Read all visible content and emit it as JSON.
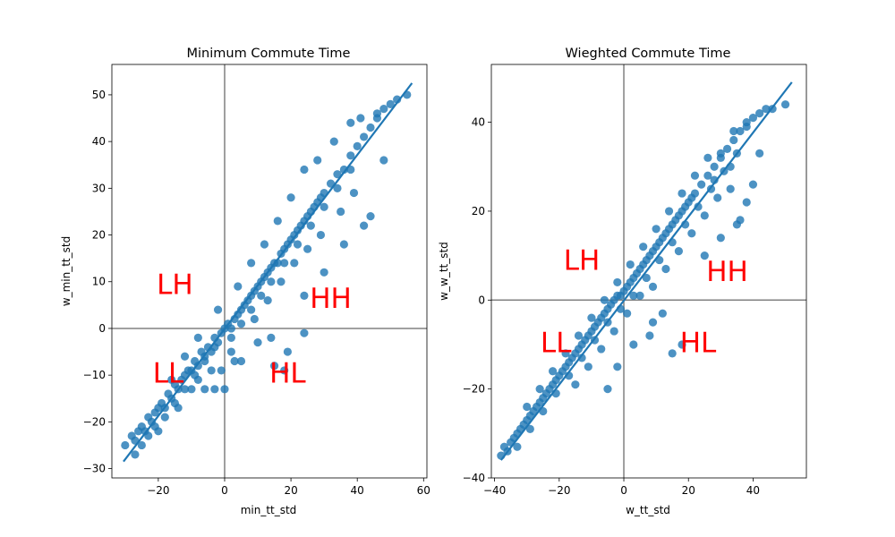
{
  "chart_data": [
    {
      "type": "scatter",
      "title": "Minimum Commute Time",
      "xlabel": "min_tt_std",
      "ylabel": "w_min_tt_std",
      "xlim": [
        -34,
        61
      ],
      "ylim": [
        -32,
        56.5
      ],
      "xticks": [
        -20,
        0,
        20,
        40,
        60
      ],
      "yticks": [
        -30,
        -20,
        -10,
        0,
        10,
        20,
        30,
        40,
        50
      ],
      "xtick_labels": [
        "−20",
        "0",
        "20",
        "40",
        "60"
      ],
      "ytick_labels": [
        "−30",
        "−20",
        "−10",
        "0",
        "10",
        "20",
        "30",
        "40",
        "50"
      ],
      "grid": false,
      "series_color": "#1f77b4",
      "reference_line_color": "#808080",
      "regression": {
        "x": [
          -30.5,
          56.5
        ],
        "y": [
          -28.5,
          52.5
        ]
      },
      "points": [
        [
          -30,
          -25
        ],
        [
          -28,
          -23
        ],
        [
          -27,
          -24
        ],
        [
          -26,
          -22
        ],
        [
          -25,
          -21
        ],
        [
          -24,
          -22
        ],
        [
          -23,
          -19
        ],
        [
          -22,
          -20
        ],
        [
          -21,
          -18
        ],
        [
          -20,
          -17
        ],
        [
          -19,
          -16
        ],
        [
          -18,
          -17
        ],
        [
          -17,
          -14
        ],
        [
          -16,
          -15
        ],
        [
          -15,
          -12
        ],
        [
          -14,
          -13
        ],
        [
          -13,
          -11
        ],
        [
          -12,
          -10
        ],
        [
          -11,
          -9
        ],
        [
          -10,
          -9
        ],
        [
          -9,
          -7
        ],
        [
          -8,
          -8
        ],
        [
          -7,
          -5
        ],
        [
          -6,
          -6
        ],
        [
          -5,
          -4
        ],
        [
          -4,
          -5
        ],
        [
          -3,
          -2
        ],
        [
          -2,
          -3
        ],
        [
          -1,
          -1
        ],
        [
          0,
          0
        ],
        [
          1,
          1
        ],
        [
          2,
          0
        ],
        [
          3,
          2
        ],
        [
          4,
          3
        ],
        [
          5,
          4
        ],
        [
          6,
          5
        ],
        [
          7,
          6
        ],
        [
          8,
          7
        ],
        [
          9,
          8
        ],
        [
          10,
          9
        ],
        [
          11,
          10
        ],
        [
          12,
          11
        ],
        [
          13,
          12
        ],
        [
          14,
          13
        ],
        [
          15,
          14
        ],
        [
          16,
          14
        ],
        [
          17,
          16
        ],
        [
          18,
          17
        ],
        [
          19,
          18
        ],
        [
          20,
          19
        ],
        [
          21,
          20
        ],
        [
          22,
          21
        ],
        [
          23,
          22
        ],
        [
          24,
          23
        ],
        [
          25,
          24
        ],
        [
          26,
          25
        ],
        [
          27,
          26
        ],
        [
          28,
          27
        ],
        [
          29,
          28
        ],
        [
          30,
          29
        ],
        [
          32,
          31
        ],
        [
          34,
          33
        ],
        [
          36,
          34
        ],
        [
          38,
          37
        ],
        [
          40,
          39
        ],
        [
          42,
          41
        ],
        [
          44,
          43
        ],
        [
          46,
          45
        ],
        [
          48,
          47
        ],
        [
          50,
          48
        ],
        [
          52,
          49
        ],
        [
          55,
          50
        ],
        [
          -27,
          -27
        ],
        [
          -25,
          -25
        ],
        [
          -23,
          -23
        ],
        [
          -21,
          -21
        ],
        [
          -18,
          -19
        ],
        [
          -15,
          -16
        ],
        [
          -12,
          -13
        ],
        [
          -9,
          -10
        ],
        [
          -6,
          -7
        ],
        [
          -3,
          -4
        ],
        [
          2,
          -2
        ],
        [
          5,
          1
        ],
        [
          8,
          4
        ],
        [
          11,
          7
        ],
        [
          14,
          10
        ],
        [
          18,
          14
        ],
        [
          22,
          18
        ],
        [
          26,
          22
        ],
        [
          30,
          26
        ],
        [
          34,
          30
        ],
        [
          38,
          34
        ],
        [
          -20,
          -22
        ],
        [
          -14,
          -17
        ],
        [
          -8,
          -11
        ],
        [
          -4,
          -9
        ],
        [
          -1,
          -9
        ],
        [
          3,
          -7
        ],
        [
          0,
          -13
        ],
        [
          5,
          -7
        ],
        [
          10,
          -3
        ],
        [
          14,
          -2
        ],
        [
          18,
          -9
        ],
        [
          24,
          7
        ],
        [
          30,
          12
        ],
        [
          36,
          18
        ],
        [
          42,
          22
        ],
        [
          44,
          24
        ],
        [
          48,
          36
        ],
        [
          -16,
          -11
        ],
        [
          -12,
          -6
        ],
        [
          -8,
          -2
        ],
        [
          -2,
          4
        ],
        [
          4,
          9
        ],
        [
          8,
          14
        ],
        [
          12,
          18
        ],
        [
          16,
          23
        ],
        [
          20,
          28
        ],
        [
          24,
          34
        ],
        [
          28,
          36
        ],
        [
          33,
          40
        ],
        [
          38,
          44
        ],
        [
          41,
          45
        ],
        [
          46,
          46
        ],
        [
          -10,
          -13
        ],
        [
          -6,
          -13
        ],
        [
          -3,
          -13
        ],
        [
          2,
          -5
        ],
        [
          9,
          2
        ],
        [
          13,
          6
        ],
        [
          17,
          10
        ],
        [
          21,
          14
        ],
        [
          25,
          17
        ],
        [
          29,
          20
        ],
        [
          35,
          25
        ],
        [
          39,
          29
        ],
        [
          24,
          -1
        ],
        [
          19,
          -5
        ],
        [
          15,
          -8
        ]
      ]
    },
    {
      "type": "scatter",
      "title": "Wieghted Commute Time",
      "xlabel": "w_tt_std",
      "ylabel": "w_w_tt_std",
      "xlim": [
        -41,
        56.5
      ],
      "ylim": [
        -40,
        53
      ],
      "xticks": [
        -40,
        -20,
        0,
        20,
        40
      ],
      "yticks": [
        -40,
        -20,
        0,
        20,
        40
      ],
      "xtick_labels": [
        "−40",
        "−20",
        "0",
        "20",
        "40"
      ],
      "ytick_labels": [
        "−40",
        "−20",
        "0",
        "20",
        "40"
      ],
      "grid": false,
      "series_color": "#1f77b4",
      "reference_line_color": "#808080",
      "regression": {
        "x": [
          -38,
          52
        ],
        "y": [
          -36,
          49
        ]
      },
      "points": [
        [
          -38,
          -35
        ],
        [
          -36,
          -34
        ],
        [
          -35,
          -32
        ],
        [
          -34,
          -31
        ],
        [
          -33,
          -30
        ],
        [
          -32,
          -29
        ],
        [
          -31,
          -28
        ],
        [
          -30,
          -27
        ],
        [
          -29,
          -26
        ],
        [
          -28,
          -25
        ],
        [
          -27,
          -24
        ],
        [
          -26,
          -23
        ],
        [
          -25,
          -22
        ],
        [
          -24,
          -21
        ],
        [
          -23,
          -20
        ],
        [
          -22,
          -19
        ],
        [
          -21,
          -18
        ],
        [
          -20,
          -17
        ],
        [
          -19,
          -16
        ],
        [
          -18,
          -15
        ],
        [
          -17,
          -14
        ],
        [
          -16,
          -13
        ],
        [
          -15,
          -12
        ],
        [
          -14,
          -11
        ],
        [
          -13,
          -10
        ],
        [
          -12,
          -9
        ],
        [
          -11,
          -8
        ],
        [
          -10,
          -7
        ],
        [
          -9,
          -6
        ],
        [
          -8,
          -5
        ],
        [
          -7,
          -4
        ],
        [
          -6,
          -3
        ],
        [
          -5,
          -2
        ],
        [
          -4,
          -1
        ],
        [
          -3,
          0
        ],
        [
          -2,
          1
        ],
        [
          -1,
          1
        ],
        [
          0,
          2
        ],
        [
          1,
          3
        ],
        [
          2,
          4
        ],
        [
          3,
          5
        ],
        [
          4,
          6
        ],
        [
          5,
          7
        ],
        [
          6,
          8
        ],
        [
          7,
          9
        ],
        [
          8,
          10
        ],
        [
          9,
          11
        ],
        [
          10,
          12
        ],
        [
          11,
          13
        ],
        [
          12,
          14
        ],
        [
          13,
          15
        ],
        [
          14,
          16
        ],
        [
          15,
          17
        ],
        [
          16,
          18
        ],
        [
          17,
          19
        ],
        [
          18,
          20
        ],
        [
          19,
          21
        ],
        [
          20,
          22
        ],
        [
          21,
          23
        ],
        [
          22,
          24
        ],
        [
          24,
          26
        ],
        [
          26,
          28
        ],
        [
          28,
          30
        ],
        [
          30,
          32
        ],
        [
          32,
          34
        ],
        [
          34,
          36
        ],
        [
          36,
          38
        ],
        [
          38,
          39
        ],
        [
          40,
          41
        ],
        [
          42,
          42
        ],
        [
          44,
          43
        ],
        [
          46,
          43
        ],
        [
          50,
          44
        ],
        [
          -37,
          -33
        ],
        [
          -33,
          -33
        ],
        [
          -29,
          -29
        ],
        [
          -25,
          -25
        ],
        [
          -21,
          -21
        ],
        [
          -17,
          -17
        ],
        [
          -13,
          -13
        ],
        [
          -9,
          -9
        ],
        [
          -5,
          -5
        ],
        [
          -1,
          -2
        ],
        [
          3,
          1
        ],
        [
          7,
          5
        ],
        [
          11,
          9
        ],
        [
          15,
          13
        ],
        [
          19,
          17
        ],
        [
          23,
          21
        ],
        [
          27,
          25
        ],
        [
          31,
          29
        ],
        [
          35,
          33
        ],
        [
          -30,
          -24
        ],
        [
          -26,
          -20
        ],
        [
          -22,
          -16
        ],
        [
          -18,
          -12
        ],
        [
          -14,
          -8
        ],
        [
          -10,
          -4
        ],
        [
          -6,
          0
        ],
        [
          -2,
          4
        ],
        [
          2,
          8
        ],
        [
          6,
          12
        ],
        [
          10,
          16
        ],
        [
          14,
          20
        ],
        [
          18,
          24
        ],
        [
          22,
          28
        ],
        [
          26,
          32
        ],
        [
          30,
          33
        ],
        [
          34,
          38
        ],
        [
          38,
          40
        ],
        [
          -15,
          -19
        ],
        [
          -11,
          -15
        ],
        [
          -7,
          -11
        ],
        [
          -3,
          -7
        ],
        [
          1,
          -3
        ],
        [
          5,
          1
        ],
        [
          9,
          3
        ],
        [
          13,
          7
        ],
        [
          17,
          11
        ],
        [
          21,
          15
        ],
        [
          25,
          19
        ],
        [
          29,
          23
        ],
        [
          33,
          25
        ],
        [
          18,
          -10
        ],
        [
          15,
          -12
        ],
        [
          12,
          -3
        ],
        [
          9,
          -5
        ],
        [
          25,
          10
        ],
        [
          30,
          14
        ],
        [
          36,
          18
        ],
        [
          42,
          33
        ],
        [
          38,
          22
        ],
        [
          35,
          17
        ],
        [
          40,
          26
        ],
        [
          -5,
          -20
        ],
        [
          -2,
          -15
        ],
        [
          3,
          -10
        ],
        [
          8,
          -8
        ],
        [
          28,
          27
        ],
        [
          33,
          30
        ]
      ]
    }
  ],
  "annotations": [
    {
      "chart": 0,
      "items": [
        {
          "text": "LH",
          "x": -15,
          "y": 9
        },
        {
          "text": "HH",
          "x": 32,
          "y": 6
        },
        {
          "text": "LL",
          "x": -17,
          "y": -10
        },
        {
          "text": "HL",
          "x": 19,
          "y": -10
        }
      ],
      "color": "#ff0000"
    },
    {
      "chart": 1,
      "items": [
        {
          "text": "LH",
          "x": -13,
          "y": 8.5
        },
        {
          "text": "HH",
          "x": 32,
          "y": 6
        },
        {
          "text": "LL",
          "x": -21,
          "y": -10
        },
        {
          "text": "HL",
          "x": 23,
          "y": -10
        }
      ],
      "color": "#ff0000"
    }
  ]
}
